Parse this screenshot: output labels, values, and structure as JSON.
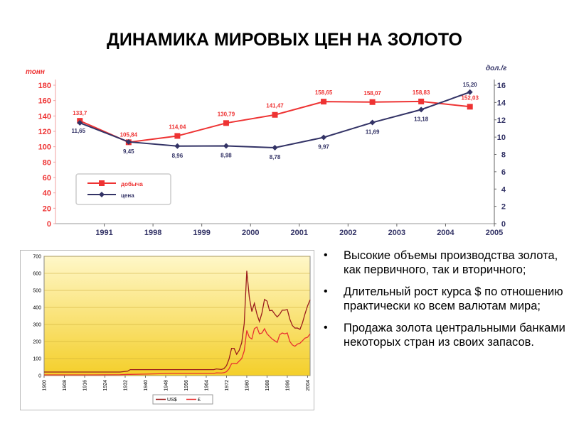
{
  "slide": {
    "title": "ДИНАМИКА МИРОВЫХ ЦЕН НА ЗОЛОТО",
    "bullets": [
      "Высокие объемы производства золота, как первичного, так и вторичного;",
      "Длительный рост курса $ по отношению практически ко всем валютам мира;",
      "Продажа золота центральными банками некоторых стран из своих запасов."
    ]
  },
  "chart_data": [
    {
      "type": "line",
      "categories": [
        "1991",
        "1998",
        "1999",
        "2000",
        "2001",
        "2002",
        "2003",
        "2004",
        "2005"
      ],
      "ylabel": "тонн",
      "y2label": "дол./г",
      "ylim": [
        0,
        180
      ],
      "y2lim": [
        0,
        16
      ],
      "yticks": [
        "0",
        "20",
        "40",
        "60",
        "80",
        "100",
        "120",
        "140",
        "160",
        "180"
      ],
      "y2ticks": [
        "0",
        "2",
        "4",
        "6",
        "8",
        "10",
        "12",
        "14",
        "16"
      ],
      "grid": false,
      "legend_position": "left-middle",
      "series": [
        {
          "name": "добыча",
          "axis": "left",
          "color": "#ee3333",
          "values": [
            133.7,
            105.84,
            114.04,
            130.79,
            141.47,
            158.65,
            158.07,
            158.83,
            152.03
          ],
          "labels": [
            "133,7",
            "105,84",
            "114,04",
            "130,79",
            "141,47",
            "158,65",
            "158,07",
            "158,83",
            "152,03"
          ]
        },
        {
          "name": "цена",
          "axis": "right",
          "color": "#333366",
          "values": [
            11.65,
            9.45,
            8.96,
            8.98,
            8.78,
            9.97,
            11.69,
            13.18,
            15.2
          ],
          "labels": [
            "11,65",
            "9,45",
            "8,96",
            "8,98",
            "8,78",
            "9,97",
            "11,69",
            "13,18",
            "15,20"
          ]
        }
      ]
    },
    {
      "type": "line",
      "x": [
        1900,
        1910,
        1920,
        1930,
        1933,
        1934,
        1940,
        1950,
        1960,
        1967,
        1968,
        1970,
        1971,
        1972,
        1973,
        1974,
        1975,
        1976,
        1977,
        1978,
        1979,
        1980,
        1981,
        1982,
        1983,
        1984,
        1985,
        1986,
        1987,
        1988,
        1989,
        1990,
        1991,
        1992,
        1993,
        1994,
        1995,
        1996,
        1997,
        1998,
        1999,
        2000,
        2001,
        2002,
        2003,
        2004,
        2005
      ],
      "xticks": [
        "1900",
        "1908",
        "1916",
        "1924",
        "1932",
        "1940",
        "1948",
        "1956",
        "1964",
        "1972",
        "1980",
        "1988",
        "1996",
        "2004"
      ],
      "yticks": [
        "0",
        "100",
        "200",
        "300",
        "400",
        "500",
        "600",
        "700"
      ],
      "ylim": [
        0,
        700
      ],
      "grid": true,
      "legend_position": "bottom",
      "series": [
        {
          "name": "US$",
          "color": "#9b1c1c",
          "values": [
            20.7,
            20.7,
            20.7,
            20.7,
            26,
            35,
            35,
            35,
            35,
            35,
            39,
            36,
            41,
            58,
            97,
            160,
            160,
            125,
            148,
            193,
            306,
            615,
            460,
            376,
            424,
            361,
            317,
            368,
            447,
            437,
            381,
            383,
            362,
            344,
            360,
            384,
            384,
            388,
            331,
            294,
            279,
            279,
            271,
            310,
            363,
            409,
            445
          ]
        },
        {
          "name": "£",
          "color": "#e83030",
          "values": [
            4.25,
            4.25,
            4.25,
            5.3,
            7,
            7,
            8.7,
            12.5,
            12.5,
            12.5,
            16,
            15,
            17,
            23,
            40,
            70,
            72,
            70,
            85,
            100,
            145,
            265,
            225,
            215,
            275,
            285,
            245,
            250,
            275,
            245,
            230,
            215,
            205,
            195,
            240,
            250,
            245,
            250,
            200,
            180,
            172,
            185,
            190,
            205,
            220,
            225,
            245
          ]
        }
      ]
    }
  ]
}
